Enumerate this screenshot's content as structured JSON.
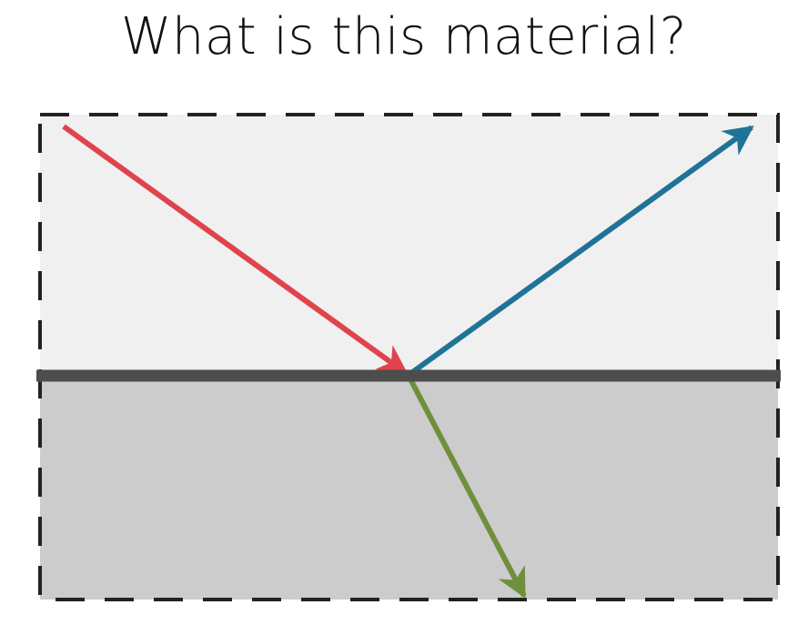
{
  "title": "What is this material?",
  "colors": {
    "upper_medium": "#f0f0f1",
    "lower_medium": "#cccccc",
    "interface": "#4d4d4d",
    "border": "#222222",
    "incident_ray": "#e0434c",
    "reflected_ray": "#1f7396",
    "refracted_ray": "#6f8f3d"
  }
}
